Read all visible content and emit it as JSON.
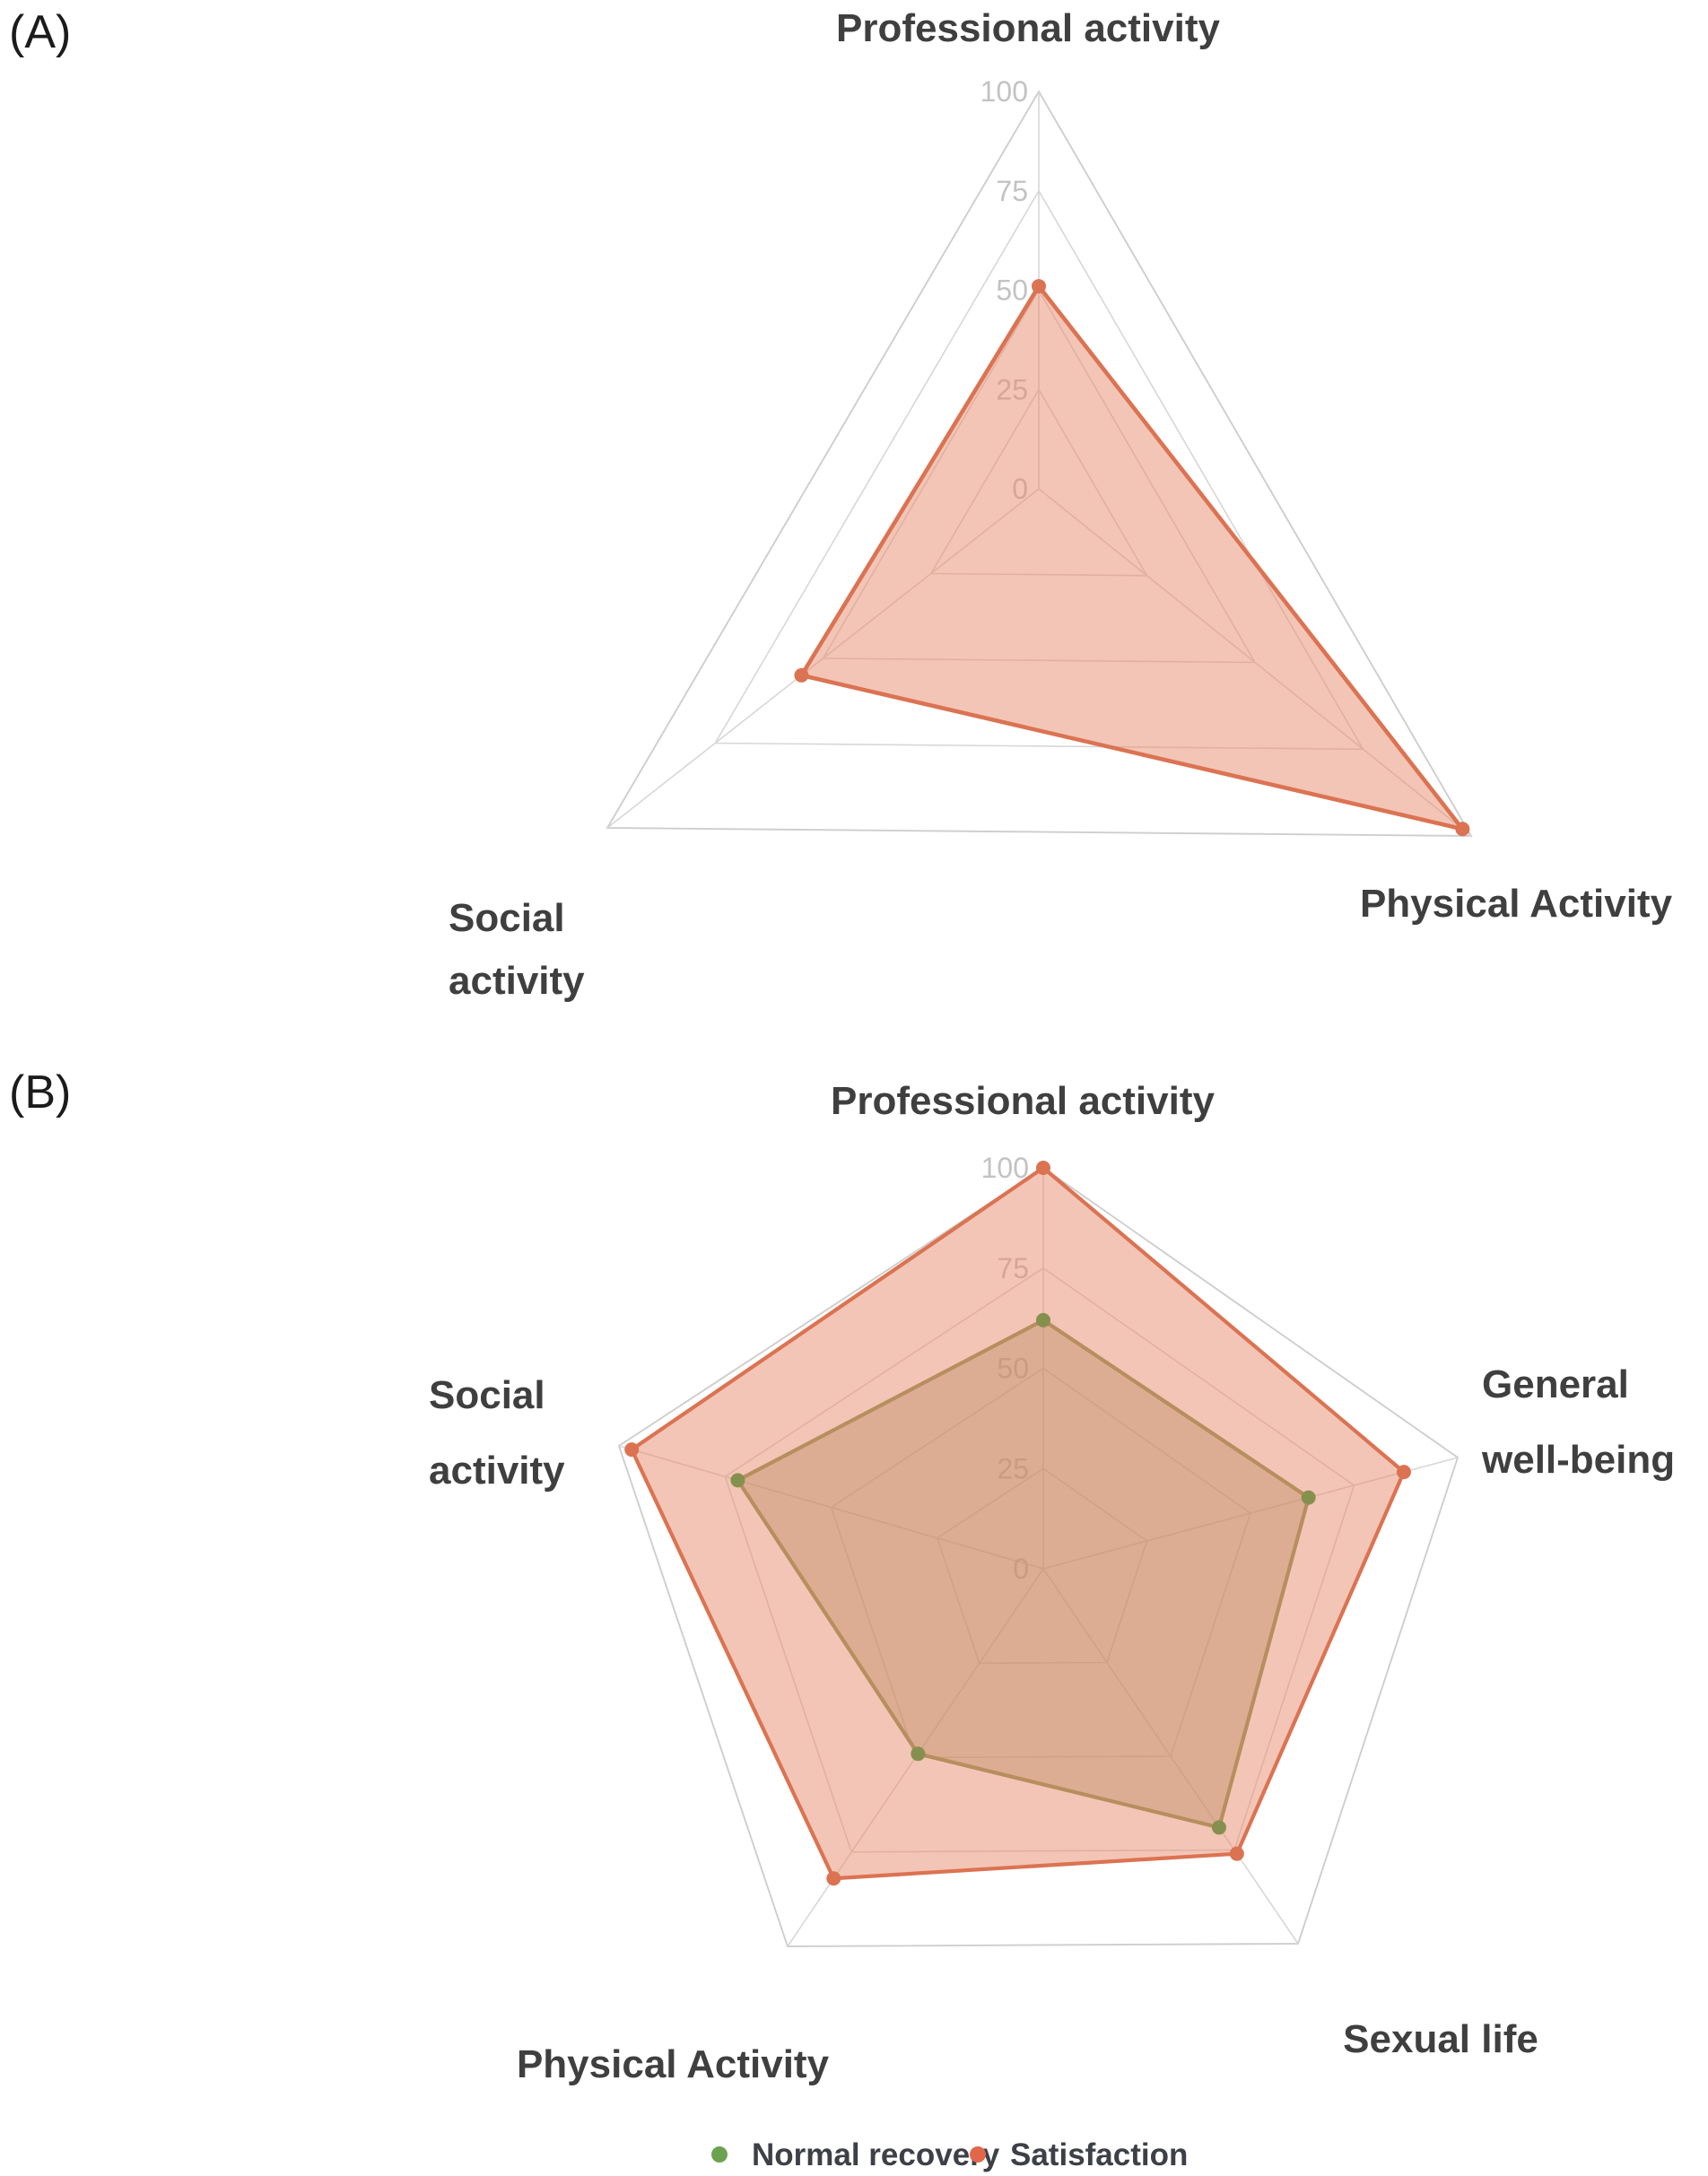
{
  "page": {
    "panels": [
      {
        "label": "(A)"
      },
      {
        "label": "(B)"
      }
    ]
  },
  "legend": {
    "items": [
      {
        "label": "Normal recovery",
        "marker_color": "#6ba24f"
      },
      {
        "label": "Satisfaction",
        "marker_color": "#e2674a"
      }
    ]
  },
  "colors": {
    "grid": "#d9d7d5",
    "outer_grid": "#d0cecc",
    "tick_text": "#c4c2c2",
    "axis_label_text": "#3f3f3f",
    "panel_letter": "#1b1b1b",
    "legend_text": "#3e4047",
    "satisfaction_stroke": "#db7352",
    "satisfaction_fill": "#e78b6d",
    "normal_recovery_stroke": "#86904e",
    "normal_recovery_fill": "#8f8a52"
  },
  "chart_data": [
    {
      "type": "radar",
      "panel": "A",
      "title": "",
      "categories": [
        "Professional activity",
        "Physical Activity",
        "Social activity"
      ],
      "axis_ticks": [
        "100",
        "75",
        "50",
        "25",
        "0"
      ],
      "tick_values": [
        100,
        75,
        50,
        25,
        0
      ],
      "axis_range": [
        0,
        100
      ],
      "grid": "on",
      "legend_position": "none",
      "series": [
        {
          "name": "Satisfaction",
          "values": [
            51,
            98,
            55
          ],
          "stroke": "#db7352",
          "fill": "#e78b6d",
          "fill_opacity": 0.5
        }
      ]
    },
    {
      "type": "radar",
      "panel": "B",
      "title": "",
      "categories": [
        "Professional activity",
        "General well-being",
        "Sexual life",
        "Physical Activity",
        "Social activity"
      ],
      "axis_ticks": [
        "100",
        "75",
        "50",
        "25",
        "0"
      ],
      "tick_values": [
        100,
        75,
        50,
        25,
        0
      ],
      "axis_range": [
        0,
        100
      ],
      "grid": "on",
      "legend_position": "bottom",
      "series": [
        {
          "name": "Normal recovery",
          "values": [
            62,
            64,
            69,
            49,
            72
          ],
          "stroke": "#86904e",
          "fill": "#8f8a52",
          "fill_opacity": 0.42
        },
        {
          "name": "Satisfaction",
          "values": [
            100,
            87,
            76,
            82,
            97
          ],
          "stroke": "#db7352",
          "fill": "#e78b6d",
          "fill_opacity": 0.5
        }
      ]
    }
  ]
}
